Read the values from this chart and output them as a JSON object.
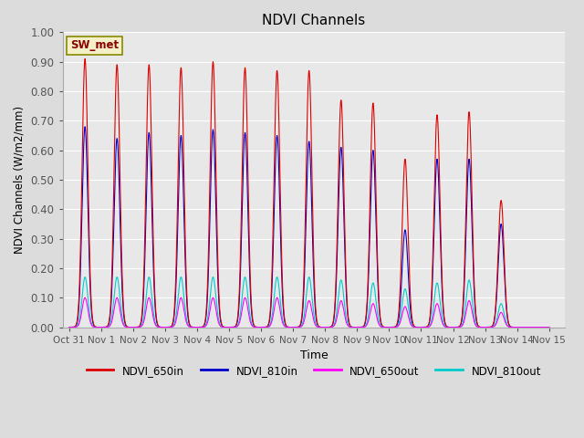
{
  "title": "NDVI Channels",
  "ylabel": "NDVI Channels (W/m2/mm)",
  "xlabel": "Time",
  "ylim": [
    0.0,
    1.0
  ],
  "xlim_days": [
    -0.2,
    15.5
  ],
  "annotation": "SW_met",
  "background_color": "#dcdcdc",
  "plot_bg_color": "#e8e8e8",
  "legend": [
    "NDVI_650in",
    "NDVI_810in",
    "NDVI_650out",
    "NDVI_810out"
  ],
  "legend_colors": [
    "#dd0000",
    "#0000cc",
    "#ff00ff",
    "#00cccc"
  ],
  "colors": {
    "NDVI_650in": "#dd0000",
    "NDVI_810in": "#0000cc",
    "NDVI_650out": "#ff00ff",
    "NDVI_810out": "#00cccc"
  },
  "day_peaks": {
    "NDVI_650in": [
      0.91,
      0.89,
      0.89,
      0.88,
      0.9,
      0.88,
      0.87,
      0.87,
      0.77,
      0.76,
      0.57,
      0.72,
      0.73,
      0.43,
      0.0
    ],
    "NDVI_810in": [
      0.68,
      0.64,
      0.66,
      0.65,
      0.67,
      0.66,
      0.65,
      0.63,
      0.61,
      0.6,
      0.33,
      0.57,
      0.57,
      0.35,
      0.0
    ],
    "NDVI_650out": [
      0.1,
      0.1,
      0.1,
      0.1,
      0.1,
      0.1,
      0.1,
      0.09,
      0.09,
      0.08,
      0.07,
      0.08,
      0.09,
      0.05,
      0.0
    ],
    "NDVI_810out": [
      0.17,
      0.17,
      0.17,
      0.17,
      0.17,
      0.17,
      0.17,
      0.17,
      0.16,
      0.15,
      0.13,
      0.15,
      0.16,
      0.08,
      0.0
    ]
  },
  "xtick_labels": [
    "Oct 31",
    "Nov 1",
    "Nov 2",
    "Nov 3",
    "Nov 4",
    "Nov 5",
    "Nov 6",
    "Nov 7",
    "Nov 8",
    "Nov 9",
    "Nov 10",
    "Nov 11",
    "Nov 12",
    "Nov 13",
    "Nov 14",
    "Nov 15"
  ],
  "xtick_positions": [
    0,
    1,
    2,
    3,
    4,
    5,
    6,
    7,
    8,
    9,
    10,
    11,
    12,
    13,
    14,
    15
  ],
  "ytick_labels": [
    "0.00",
    "0.10",
    "0.20",
    "0.30",
    "0.40",
    "0.50",
    "0.60",
    "0.70",
    "0.80",
    "0.90",
    "1.00"
  ],
  "ytick_values": [
    0.0,
    0.1,
    0.2,
    0.3,
    0.4,
    0.5,
    0.6,
    0.7,
    0.8,
    0.9,
    1.0
  ],
  "pulse_sigma": 0.09,
  "samples_per_day": 1000,
  "n_days": 15
}
